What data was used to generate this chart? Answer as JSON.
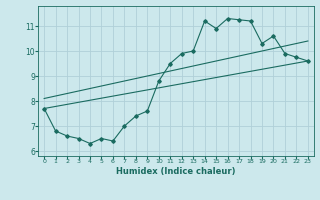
{
  "title": "",
  "xlabel": "Humidex (Indice chaleur)",
  "background_color": "#cce8ec",
  "grid_color": "#b0d0d8",
  "line_color": "#1a6b60",
  "xlim": [
    -0.5,
    23.5
  ],
  "ylim": [
    5.8,
    11.8
  ],
  "yticks": [
    6,
    7,
    8,
    9,
    10,
    11
  ],
  "xticks": [
    0,
    1,
    2,
    3,
    4,
    5,
    6,
    7,
    8,
    9,
    10,
    11,
    12,
    13,
    14,
    15,
    16,
    17,
    18,
    19,
    20,
    21,
    22,
    23
  ],
  "main_line": {
    "x": [
      0,
      1,
      2,
      3,
      4,
      5,
      6,
      7,
      8,
      9,
      10,
      11,
      12,
      13,
      14,
      15,
      16,
      17,
      18,
      19,
      20,
      21,
      22,
      23
    ],
    "y": [
      7.7,
      6.8,
      6.6,
      6.5,
      6.3,
      6.5,
      6.4,
      7.0,
      7.4,
      7.6,
      8.8,
      9.5,
      9.9,
      10.0,
      11.2,
      10.9,
      11.3,
      11.25,
      11.2,
      10.3,
      10.6,
      9.9,
      9.75,
      9.6
    ]
  },
  "lower_line": {
    "x": [
      0,
      23
    ],
    "y": [
      7.7,
      9.6
    ]
  },
  "upper_line": {
    "x": [
      0,
      23
    ],
    "y": [
      8.1,
      10.4
    ]
  }
}
